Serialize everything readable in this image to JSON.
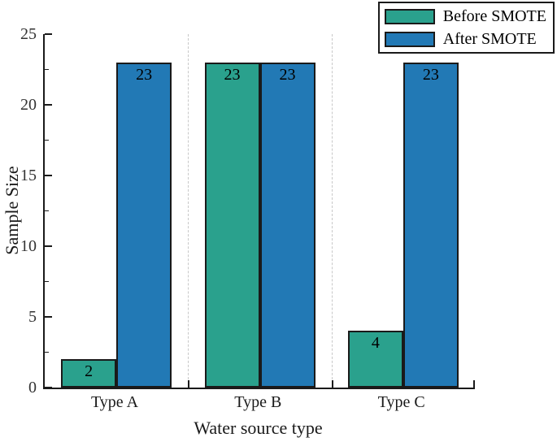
{
  "chart_data": {
    "type": "bar",
    "title": "",
    "categories": [
      "Type A",
      "Type B",
      "Type C"
    ],
    "series": [
      {
        "name": "Before SMOTE",
        "color": "#2aa18d",
        "values": [
          2,
          23,
          4
        ]
      },
      {
        "name": "After SMOTE",
        "color": "#2279b5",
        "values": [
          23,
          23,
          23
        ]
      }
    ],
    "bar_value_labels": [
      [
        2,
        23,
        4
      ],
      [
        23,
        23,
        23
      ]
    ],
    "xlabel": "Water source type",
    "ylabel": "Sample Size",
    "ylim": [
      0,
      25
    ],
    "y_major_ticks": [
      0,
      5,
      10,
      15,
      20,
      25
    ],
    "y_minor_ticks": [
      2.5,
      7.5,
      12.5,
      17.5,
      22.5
    ],
    "grid": "vertical dashed at category boundaries",
    "legend_position": "top-right",
    "colors": {
      "axis": "#1a1a1a",
      "gridline": "#c8c8c8",
      "before_smote": "#2aa18d",
      "after_smote": "#2279b5"
    }
  }
}
